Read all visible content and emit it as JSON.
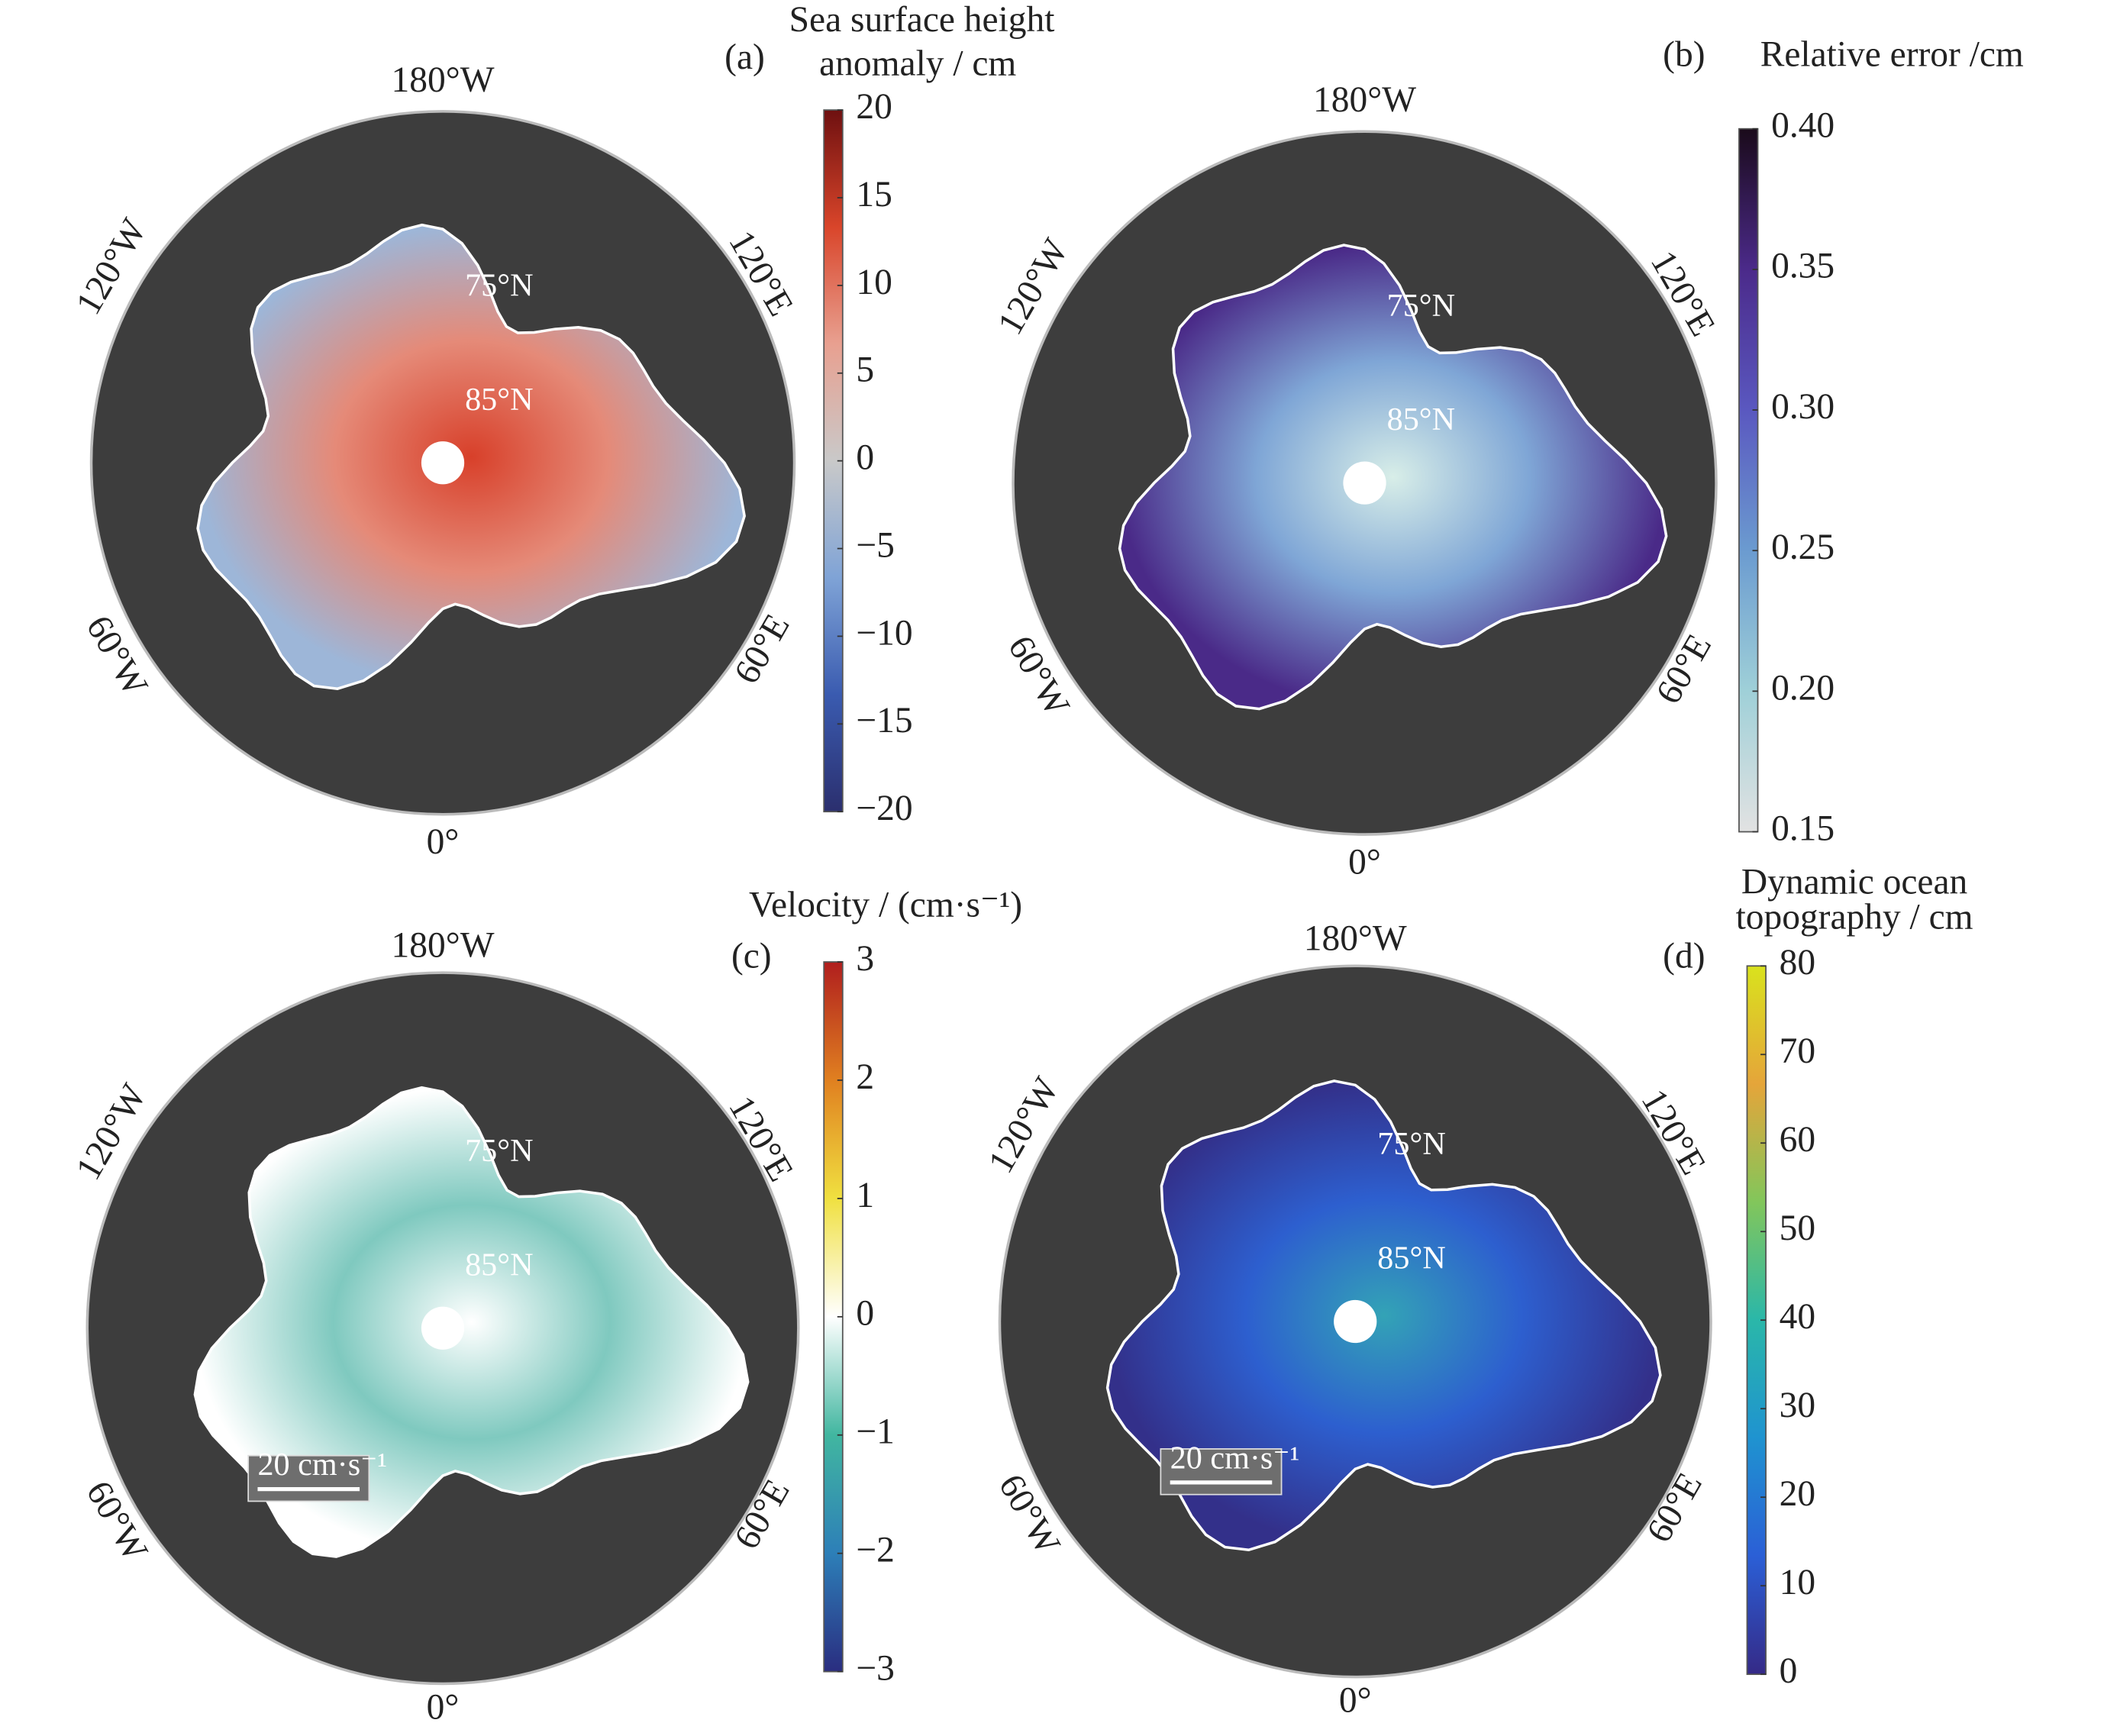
{
  "panels": [
    {
      "letter": "(a)",
      "title_lines": [
        "Sea surface height",
        "anomaly / cm"
      ],
      "lon_labels": [
        "180°W",
        "120°E",
        "60°E",
        "0°",
        "60°W",
        "120°W"
      ],
      "lat_labels": [
        "75°N",
        "85°N"
      ],
      "colorbar": {
        "lim": [
          -20,
          20
        ],
        "ticks": [
          {
            "value": 20,
            "label": "20"
          },
          {
            "value": 15,
            "label": "15"
          },
          {
            "value": 10,
            "label": "10"
          },
          {
            "value": 5,
            "label": "5"
          },
          {
            "value": 0,
            "label": "0"
          },
          {
            "value": -5,
            "label": "−5"
          },
          {
            "value": -10,
            "label": "−10"
          },
          {
            "value": -15,
            "label": "−15"
          },
          {
            "value": -20,
            "label": "−20"
          }
        ],
        "colors": [
          "#2b2f6e",
          "#3a5bb0",
          "#7fa3d6",
          "#c9c9c9",
          "#e8a090",
          "#d9452a",
          "#6e1010"
        ]
      }
    },
    {
      "letter": "(b)",
      "title_lines": [
        "Relative error /cm"
      ],
      "lon_labels": [
        "180°W",
        "120°E",
        "60°E",
        "0°",
        "60°W",
        "120°W"
      ],
      "lat_labels": [
        "75°N",
        "85°N"
      ],
      "colorbar": {
        "lim": [
          0.15,
          0.4
        ],
        "ticks": [
          {
            "value": 0.4,
            "label": "0.40"
          },
          0.35,
          {
            "value": 0.3,
            "label": "0.30"
          },
          0.25,
          {
            "value": 0.2,
            "label": "0.20"
          },
          0.15
        ],
        "colors": [
          "#e2e2e2",
          "#9fd0d8",
          "#6b9bd0",
          "#5a58c0",
          "#4b2a8a",
          "#1a0a1a"
        ]
      }
    },
    {
      "letter": "(c)",
      "title_lines": [
        "Velocity / (cm·s⁻¹)"
      ],
      "lon_labels": [
        "180°W",
        "120°E",
        "60°E",
        "0°",
        "60°W",
        "120°W"
      ],
      "lat_labels": [
        "75°N",
        "85°N"
      ],
      "scale_label": "20 cm·s⁻¹",
      "colorbar": {
        "lim": [
          -3,
          3
        ],
        "ticks": [
          3,
          2,
          1,
          0,
          {
            "value": -1,
            "label": "−1"
          },
          {
            "value": -2,
            "label": "−2"
          },
          {
            "value": -3,
            "label": "−3"
          }
        ],
        "colors": [
          "#2a2d80",
          "#2d7fb8",
          "#41b6a0",
          "#ffffff",
          "#f0e040",
          "#e08020",
          "#b01e1e"
        ]
      }
    },
    {
      "letter": "(d)",
      "title_lines": [
        "Dynamic ocean",
        "topography / cm"
      ],
      "lon_labels": [
        "180°W",
        "120°E",
        "60°E",
        "0°",
        "60°W",
        "120°W"
      ],
      "lat_labels": [
        "75°N",
        "85°N"
      ],
      "scale_label": "20 cm·s⁻¹",
      "colorbar": {
        "lim": [
          0,
          80
        ],
        "ticks": [
          80,
          70,
          60,
          50,
          40,
          30,
          20,
          10,
          0
        ],
        "colors": [
          "#352a87",
          "#2b5fd6",
          "#1f93d0",
          "#2ab7a9",
          "#82c65b",
          "#e5a53a",
          "#d9e21d"
        ]
      }
    }
  ]
}
